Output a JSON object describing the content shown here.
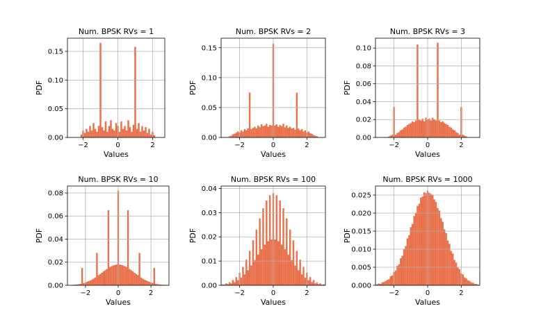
{
  "chart_data": [
    {
      "type": "histogram",
      "title": "Num. BPSK RVs = 1",
      "x_label": "Values",
      "y_label": "PDF",
      "color": "#e8704a",
      "grid": true,
      "bins": [
        -3.05,
        -2.95,
        -2.85,
        -2.75,
        -2.65,
        -2.55,
        -2.45,
        -2.35,
        -2.25,
        -2.15,
        -2.05,
        -1.95,
        -1.85,
        -1.75,
        -1.65,
        -1.55,
        -1.45,
        -1.35,
        -1.25,
        -1.15,
        -1.05,
        -0.95,
        -0.85,
        -0.75,
        -0.65,
        -0.55,
        -0.45,
        -0.35,
        -0.25,
        -0.15,
        -0.05,
        0.05,
        0.15,
        0.25,
        0.35,
        0.45,
        0.55,
        0.65,
        0.75,
        0.85,
        0.95,
        1.05,
        1.15,
        1.25,
        1.35,
        1.45,
        1.55,
        1.65,
        1.75,
        1.85,
        1.95,
        2.05,
        2.15,
        2.25,
        2.35,
        2.45,
        2.55,
        2.65,
        2.75,
        2.85,
        2.95,
        3.05
      ],
      "values": [
        0,
        0,
        0,
        0,
        0,
        0,
        0,
        0,
        0,
        0.005,
        0.012,
        0.008,
        0.015,
        0.01,
        0.02,
        0.012,
        0.025,
        0.015,
        0.01,
        0.02,
        0.165,
        0.018,
        0.012,
        0.028,
        0.01,
        0.02,
        0.03,
        0.015,
        0.012,
        0.025,
        0.02,
        0.01,
        0.028,
        0.015,
        0.02,
        0.012,
        0.03,
        0.018,
        0.01,
        0.022,
        0.158,
        0.015,
        0.025,
        0.01,
        0.02,
        0.012,
        0.018,
        0.008,
        0.015,
        0.005,
        0.01,
        0.004,
        0,
        0,
        0,
        0,
        0,
        0,
        0,
        0,
        0
      ],
      "xlim": [
        -2.9,
        2.7
      ],
      "xticks": [
        {
          "value": -2,
          "label": "−2"
        },
        0,
        {
          "value": 2,
          "label": "2"
        }
      ],
      "ylim": [
        0,
        0.173
      ],
      "yticks": [
        {
          "value": 0,
          "label": "0.00"
        },
        {
          "value": 0.05,
          "label": "0.05"
        },
        {
          "value": 0.1,
          "label": "0.10"
        },
        {
          "value": 0.15,
          "label": "0.15"
        }
      ]
    },
    {
      "type": "histogram",
      "title": "Num. BPSK RVs = 2",
      "x_label": "Values",
      "y_label": "PDF",
      "color": "#e8704a",
      "grid": true,
      "bins": [
        -3.05,
        -2.95,
        -2.85,
        -2.75,
        -2.65,
        -2.55,
        -2.45,
        -2.35,
        -2.25,
        -2.15,
        -2.05,
        -1.95,
        -1.85,
        -1.75,
        -1.65,
        -1.55,
        -1.45,
        -1.35,
        -1.25,
        -1.15,
        -1.05,
        -0.95,
        -0.85,
        -0.75,
        -0.65,
        -0.55,
        -0.45,
        -0.35,
        -0.25,
        -0.15,
        -0.05,
        0.05,
        0.15,
        0.25,
        0.35,
        0.45,
        0.55,
        0.65,
        0.75,
        0.85,
        0.95,
        1.05,
        1.15,
        1.25,
        1.35,
        1.45,
        1.55,
        1.65,
        1.75,
        1.85,
        1.95,
        2.05,
        2.15,
        2.25,
        2.35,
        2.45,
        2.55,
        2.65,
        2.75,
        2.85,
        2.95,
        3.05
      ],
      "values": [
        0,
        0,
        0,
        0,
        0.002,
        0.003,
        0.005,
        0.006,
        0.008,
        0.01,
        0.008,
        0.012,
        0.01,
        0.014,
        0.012,
        0.015,
        0.075,
        0.014,
        0.016,
        0.018,
        0.015,
        0.02,
        0.017,
        0.022,
        0.019,
        0.02,
        0.023,
        0.018,
        0.021,
        0.02,
        0.157,
        0.02,
        0.022,
        0.018,
        0.021,
        0.019,
        0.023,
        0.017,
        0.02,
        0.016,
        0.018,
        0.015,
        0.016,
        0.013,
        0.075,
        0.015,
        0.012,
        0.014,
        0.01,
        0.012,
        0.008,
        0.01,
        0.007,
        0.006,
        0.004,
        0.003,
        0.002,
        0,
        0,
        0,
        0
      ],
      "xlim": [
        -3.1,
        3.1
      ],
      "xticks": [
        {
          "value": -2,
          "label": "−2"
        },
        0,
        {
          "value": 2,
          "label": "2"
        }
      ],
      "ylim": [
        0,
        0.166
      ],
      "yticks": [
        {
          "value": 0,
          "label": "0.00"
        },
        {
          "value": 0.05,
          "label": "0.05"
        },
        {
          "value": 0.1,
          "label": "0.10"
        },
        {
          "value": 0.15,
          "label": "0.15"
        }
      ]
    },
    {
      "type": "histogram",
      "title": "Num. BPSK RVs = 3",
      "x_label": "Values",
      "y_label": "PDF",
      "color": "#e8704a",
      "grid": true,
      "bins": [
        -3.05,
        -2.95,
        -2.85,
        -2.75,
        -2.65,
        -2.55,
        -2.45,
        -2.35,
        -2.25,
        -2.15,
        -2.05,
        -1.95,
        -1.85,
        -1.75,
        -1.65,
        -1.55,
        -1.45,
        -1.35,
        -1.25,
        -1.15,
        -1.05,
        -0.95,
        -0.85,
        -0.75,
        -0.65,
        -0.55,
        -0.45,
        -0.35,
        -0.25,
        -0.15,
        -0.05,
        0.05,
        0.15,
        0.25,
        0.35,
        0.45,
        0.55,
        0.65,
        0.75,
        0.85,
        0.95,
        1.05,
        1.15,
        1.25,
        1.35,
        1.45,
        1.55,
        1.65,
        1.75,
        1.85,
        1.95,
        2.05,
        2.15,
        2.25,
        2.35,
        2.45,
        2.55,
        2.65,
        2.75,
        2.85,
        2.95,
        3.05
      ],
      "values": [
        0,
        0,
        0,
        0,
        0,
        0,
        0,
        0.001,
        0.002,
        0.003,
        0.034,
        0.003,
        0.005,
        0.006,
        0.008,
        0.009,
        0.011,
        0.012,
        0.014,
        0.015,
        0.016,
        0.018,
        0.017,
        0.019,
        0.104,
        0.02,
        0.019,
        0.021,
        0.018,
        0.022,
        0.02,
        0.021,
        0.019,
        0.022,
        0.02,
        0.019,
        0.106,
        0.019,
        0.017,
        0.018,
        0.016,
        0.015,
        0.014,
        0.012,
        0.011,
        0.009,
        0.008,
        0.006,
        0.005,
        0.003,
        0.034,
        0.003,
        0.002,
        0.001,
        0,
        0,
        0,
        0,
        0,
        0,
        0
      ],
      "xlim": [
        -3.1,
        3.1
      ],
      "xticks": [
        {
          "value": -2,
          "label": "−2"
        },
        0,
        {
          "value": 2,
          "label": "2"
        }
      ],
      "ylim": [
        0,
        0.111
      ],
      "yticks": [
        {
          "value": 0,
          "label": "0.00"
        },
        {
          "value": 0.02,
          "label": "0.02"
        },
        {
          "value": 0.04,
          "label": "0.04"
        },
        {
          "value": 0.06,
          "label": "0.06"
        },
        {
          "value": 0.08,
          "label": "0.08"
        },
        {
          "value": 0.1,
          "label": "0.10"
        }
      ]
    },
    {
      "type": "histogram",
      "title": "Num. BPSK RVs = 10",
      "x_label": "Values",
      "y_label": "PDF",
      "color": "#e8704a",
      "grid": true,
      "bins": [
        -3.05,
        -2.95,
        -2.85,
        -2.75,
        -2.65,
        -2.55,
        -2.45,
        -2.35,
        -2.25,
        -2.15,
        -2.05,
        -1.95,
        -1.85,
        -1.75,
        -1.65,
        -1.55,
        -1.45,
        -1.35,
        -1.25,
        -1.15,
        -1.05,
        -0.95,
        -0.85,
        -0.75,
        -0.65,
        -0.55,
        -0.45,
        -0.35,
        -0.25,
        -0.15,
        -0.05,
        0.05,
        0.15,
        0.25,
        0.35,
        0.45,
        0.55,
        0.65,
        0.75,
        0.85,
        0.95,
        1.05,
        1.15,
        1.25,
        1.35,
        1.45,
        1.55,
        1.65,
        1.75,
        1.85,
        1.95,
        2.05,
        2.15,
        2.25,
        2.35,
        2.45,
        2.55,
        2.65,
        2.75,
        2.85,
        2.95,
        3.05
      ],
      "values": [
        0.0002,
        0.0003,
        0.0004,
        0.0005,
        0.0006,
        0.0008,
        0.001,
        0.0013,
        0.015,
        0.002,
        0.0024,
        0.003,
        0.0036,
        0.0042,
        0.005,
        0.0058,
        0.0068,
        0.028,
        0.0088,
        0.0098,
        0.0109,
        0.012,
        0.013,
        0.0141,
        0.065,
        0.0159,
        0.0166,
        0.0172,
        0.0176,
        0.0179,
        0.082,
        0.0179,
        0.0176,
        0.0172,
        0.0166,
        0.0159,
        0.065,
        0.0141,
        0.013,
        0.012,
        0.0109,
        0.0098,
        0.0088,
        0.028,
        0.0068,
        0.0058,
        0.005,
        0.0042,
        0.0036,
        0.003,
        0.0024,
        0.002,
        0.015,
        0.0013,
        0.001,
        0.0008,
        0.0006,
        0.0005,
        0.0004,
        0.0003,
        0.0002
      ],
      "xlim": [
        -3.1,
        3.1
      ],
      "xticks": [
        {
          "value": -2,
          "label": "−2"
        },
        0,
        {
          "value": 2,
          "label": "2"
        }
      ],
      "ylim": [
        0,
        0.086
      ],
      "yticks": [
        {
          "value": 0,
          "label": "0.00"
        },
        {
          "value": 0.02,
          "label": "0.02"
        },
        {
          "value": 0.04,
          "label": "0.04"
        },
        {
          "value": 0.06,
          "label": "0.06"
        },
        {
          "value": 0.08,
          "label": "0.08"
        }
      ]
    },
    {
      "type": "histogram",
      "title": "Num. BPSK RVs = 100",
      "x_label": "Values",
      "y_label": "PDF",
      "color": "#e8704a",
      "grid": true,
      "bins": [
        -3.05,
        -2.95,
        -2.85,
        -2.75,
        -2.65,
        -2.55,
        -2.45,
        -2.35,
        -2.25,
        -2.15,
        -2.05,
        -1.95,
        -1.85,
        -1.75,
        -1.65,
        -1.55,
        -1.45,
        -1.35,
        -1.25,
        -1.15,
        -1.05,
        -0.95,
        -0.85,
        -0.75,
        -0.65,
        -0.55,
        -0.45,
        -0.35,
        -0.25,
        -0.15,
        -0.05,
        0.05,
        0.15,
        0.25,
        0.35,
        0.45,
        0.55,
        0.65,
        0.75,
        0.85,
        0.95,
        1.05,
        1.15,
        1.25,
        1.35,
        1.45,
        1.55,
        1.65,
        1.75,
        1.85,
        1.95,
        2.05,
        2.15,
        2.25,
        2.35,
        2.45,
        2.55,
        2.65,
        2.75,
        2.85,
        2.95,
        3.05
      ],
      "values": [
        0.0004,
        0.0003,
        0.0008,
        0.0005,
        0.0012,
        0.0008,
        0.0022,
        0.0013,
        0.0034,
        0.0021,
        0.0052,
        0.0031,
        0.0076,
        0.0045,
        0.0106,
        0.0062,
        0.0142,
        0.0082,
        0.0186,
        0.0104,
        0.023,
        0.0127,
        0.0276,
        0.0149,
        0.0318,
        0.0168,
        0.035,
        0.0182,
        0.0372,
        0.0189,
        0.038,
        0.0189,
        0.0372,
        0.0182,
        0.035,
        0.0168,
        0.0318,
        0.0149,
        0.0276,
        0.0127,
        0.023,
        0.0104,
        0.0186,
        0.0082,
        0.0142,
        0.0062,
        0.0106,
        0.0045,
        0.0076,
        0.0031,
        0.0052,
        0.0021,
        0.0034,
        0.0013,
        0.0022,
        0.0008,
        0.0012,
        0.0005,
        0.0008,
        0.0003,
        0.0004
      ],
      "xlim": [
        -3.1,
        3.1
      ],
      "xticks": [
        {
          "value": -2,
          "label": "−2"
        },
        0,
        {
          "value": 2,
          "label": "2"
        }
      ],
      "ylim": [
        0,
        0.041
      ],
      "yticks": [
        {
          "value": 0,
          "label": "0.00"
        },
        {
          "value": 0.01,
          "label": "0.01"
        },
        {
          "value": 0.02,
          "label": "0.02"
        },
        {
          "value": 0.03,
          "label": "0.03"
        },
        {
          "value": 0.04,
          "label": "0.04"
        }
      ]
    },
    {
      "type": "histogram",
      "title": "Num. BPSK RVs = 1000",
      "x_label": "Values",
      "y_label": "PDF",
      "color": "#e8704a",
      "grid": true,
      "bins": [
        -3.05,
        -2.95,
        -2.85,
        -2.75,
        -2.65,
        -2.55,
        -2.45,
        -2.35,
        -2.25,
        -2.15,
        -2.05,
        -1.95,
        -1.85,
        -1.75,
        -1.65,
        -1.55,
        -1.45,
        -1.35,
        -1.25,
        -1.15,
        -1.05,
        -0.95,
        -0.85,
        -0.75,
        -0.65,
        -0.55,
        -0.45,
        -0.35,
        -0.25,
        -0.15,
        -0.05,
        0.05,
        0.15,
        0.25,
        0.35,
        0.45,
        0.55,
        0.65,
        0.75,
        0.85,
        0.95,
        1.05,
        1.15,
        1.25,
        1.35,
        1.45,
        1.55,
        1.65,
        1.75,
        1.85,
        1.95,
        2.05,
        2.15,
        2.25,
        2.35,
        2.45,
        2.55,
        2.65,
        2.75,
        2.85,
        2.95,
        3.05
      ],
      "values": [
        0.0003,
        0.0005,
        0.0004,
        0.0008,
        0.0009,
        0.0012,
        0.0015,
        0.0017,
        0.0025,
        0.0027,
        0.0037,
        0.0041,
        0.0054,
        0.0058,
        0.0075,
        0.0082,
        0.0101,
        0.0109,
        0.013,
        0.0139,
        0.0161,
        0.017,
        0.0192,
        0.0201,
        0.022,
        0.0226,
        0.0243,
        0.0246,
        0.0258,
        0.0255,
        0.0262,
        0.0256,
        0.0253,
        0.0251,
        0.0238,
        0.0231,
        0.0214,
        0.0207,
        0.0186,
        0.0176,
        0.0155,
        0.0145,
        0.0124,
        0.0115,
        0.0095,
        0.0088,
        0.007,
        0.0063,
        0.0049,
        0.0045,
        0.0033,
        0.003,
        0.0022,
        0.0019,
        0.0014,
        0.0012,
        0.0008,
        0.0007,
        0.0004,
        0.0004,
        0.0002
      ],
      "xlim": [
        -3.1,
        3.1
      ],
      "xticks": [
        {
          "value": -2,
          "label": "−2"
        },
        0,
        {
          "value": 2,
          "label": "2"
        }
      ],
      "ylim": [
        0,
        0.0275
      ],
      "yticks": [
        {
          "value": 0,
          "label": "0.000"
        },
        {
          "value": 0.005,
          "label": "0.005"
        },
        {
          "value": 0.01,
          "label": "0.010"
        },
        {
          "value": 0.015,
          "label": "0.015"
        },
        {
          "value": 0.02,
          "label": "0.020"
        },
        {
          "value": 0.025,
          "label": "0.025"
        }
      ]
    }
  ]
}
